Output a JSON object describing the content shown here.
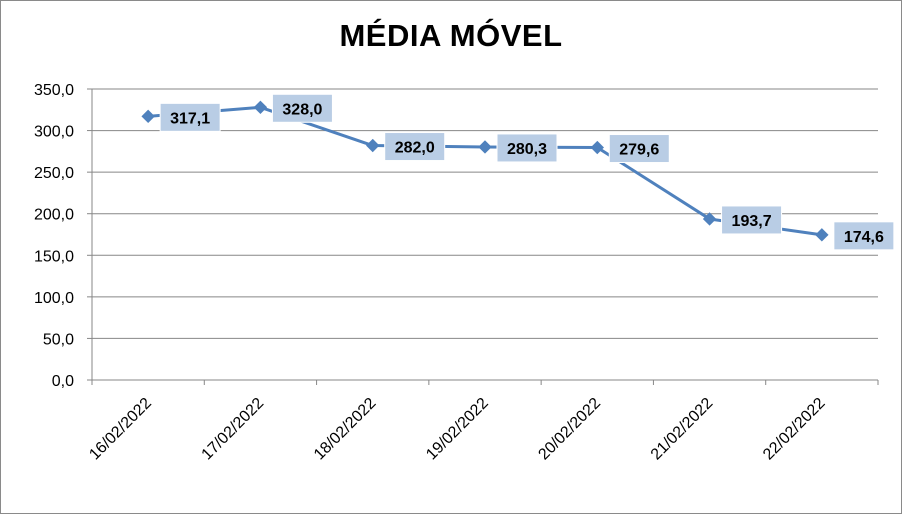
{
  "chart_data": {
    "type": "line",
    "title": "MÉDIA MÓVEL",
    "categories": [
      "16/02/2022",
      "17/02/2022",
      "18/02/2022",
      "19/02/2022",
      "20/02/2022",
      "21/02/2022",
      "22/02/2022"
    ],
    "series": [
      {
        "values": [
          317.1,
          328.0,
          282.0,
          280.3,
          279.6,
          193.7,
          174.6
        ]
      }
    ],
    "data_labels": [
      "317,1",
      "328,0",
      "282,0",
      "280,3",
      "279,6",
      "193,7",
      "174,6"
    ],
    "y_ticks": [
      "0,0",
      "50,0",
      "100,0",
      "150,0",
      "200,0",
      "250,0",
      "300,0",
      "350,0"
    ],
    "ylim": [
      0,
      350
    ],
    "ytick_step": 50,
    "grid": true,
    "legend": "none",
    "colors": {
      "line": "#4f81bd",
      "marker": "#4f81bd",
      "label_bg": "#b9cde5",
      "grid": "#878787",
      "axis": "#878787"
    }
  }
}
